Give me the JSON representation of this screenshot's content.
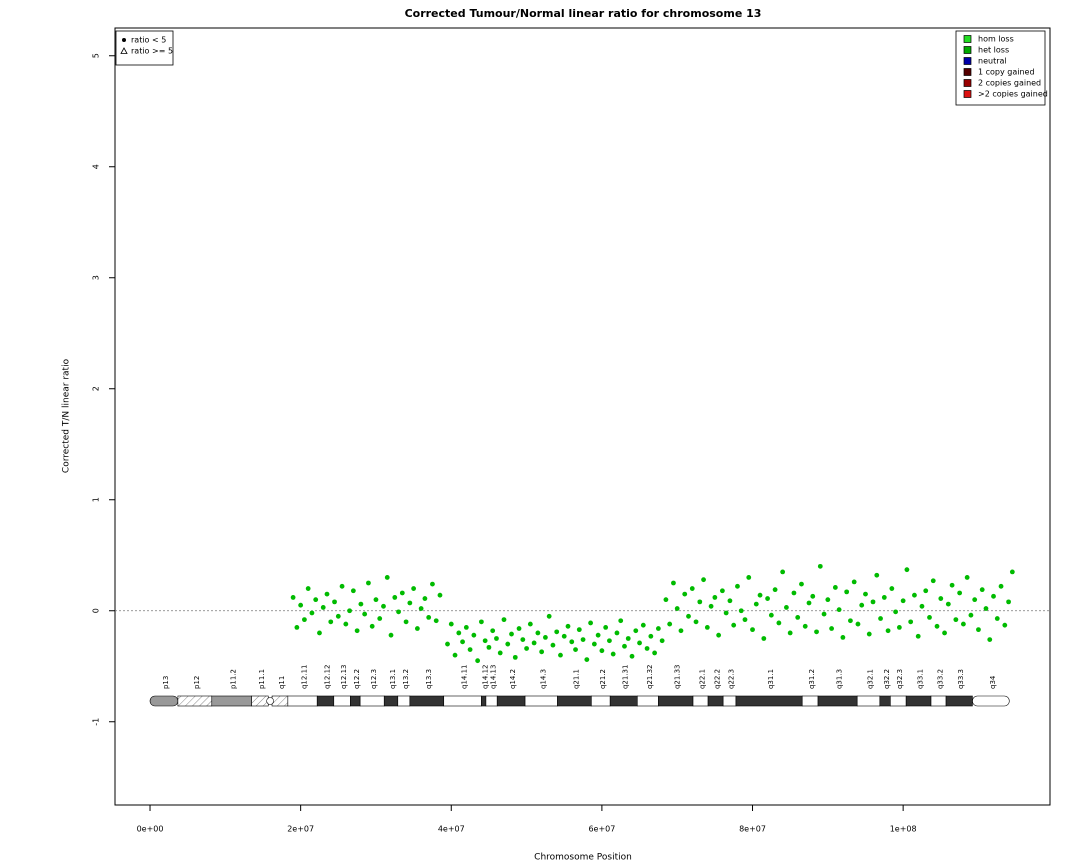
{
  "chart_data": {
    "type": "scatter",
    "title": "Corrected Tumour/Normal linear ratio for chromosome  13",
    "x_label": "Chromosome Position",
    "y_label": "Corrected T/N linear ratio",
    "xlim": [
      -4650000,
      119500000
    ],
    "ylim": [
      -1.75,
      5.25
    ],
    "xticks": [
      {
        "value": 0,
        "label": "0e+00"
      },
      {
        "value": 20000000,
        "label": "2e+07"
      },
      {
        "value": 40000000,
        "label": "4e+07"
      },
      {
        "value": 60000000,
        "label": "6e+07"
      },
      {
        "value": 80000000,
        "label": "8e+07"
      },
      {
        "value": 100000000,
        "label": "1e+08"
      }
    ],
    "yticks": [
      -1,
      0,
      1,
      2,
      3,
      4,
      5
    ],
    "reference_line": 0,
    "color": "#00bb00",
    "x": [
      19000000.0,
      19500000.0,
      20000000.0,
      20500000.0,
      21000000.0,
      21500000.0,
      22000000.0,
      22500000.0,
      23000000.0,
      23500000.0,
      24000000.0,
      24500000.0,
      25000000.0,
      25500000.0,
      26000000.0,
      26500000.0,
      27000000.0,
      27500000.0,
      28000000.0,
      28500000.0,
      29000000.0,
      29500000.0,
      30000000.0,
      30500000.0,
      31000000.0,
      31500000.0,
      32000000.0,
      32500000.0,
      33000000.0,
      33500000.0,
      34000000.0,
      34500000.0,
      35000000.0,
      35500000.0,
      36000000.0,
      36500000.0,
      37000000.0,
      37500000.0,
      38000000.0,
      38500000.0,
      39500000.0,
      40000000.0,
      40500000.0,
      41000000.0,
      41500000.0,
      42000000.0,
      42500000.0,
      43000000.0,
      43500000.0,
      44000000.0,
      44500000.0,
      45000000.0,
      45500000.0,
      46000000.0,
      46500000.0,
      47000000.0,
      47500000.0,
      48000000.0,
      48500000.0,
      49000000.0,
      49500000.0,
      50000000.0,
      50500000.0,
      51000000.0,
      51500000.0,
      52000000.0,
      52500000.0,
      53000000.0,
      53500000.0,
      54000000.0,
      54500000.0,
      55000000.0,
      55500000.0,
      56000000.0,
      56500000.0,
      57000000.0,
      57500000.0,
      58000000.0,
      58500000.0,
      59000000.0,
      59500000.0,
      60000000.0,
      60500000.0,
      61000000.0,
      61500000.0,
      62000000.0,
      62500000.0,
      63000000.0,
      63500000.0,
      64000000.0,
      64500000.0,
      65000000.0,
      65500000.0,
      66000000.0,
      66500000.0,
      67000000.0,
      67500000.0,
      68000000.0,
      68500000.0,
      69000000.0,
      69500000.0,
      70000000.0,
      70500000.0,
      71000000.0,
      71500000.0,
      72000000.0,
      72500000.0,
      73000000.0,
      73500000.0,
      74000000.0,
      74500000.0,
      75000000.0,
      75500000.0,
      76000000.0,
      76500000.0,
      77000000.0,
      77500000.0,
      78000000.0,
      78500000.0,
      79000000.0,
      79500000.0,
      80000000.0,
      80500000.0,
      81000000.0,
      81500000.0,
      82000000.0,
      82500000.0,
      83000000.0,
      83500000.0,
      84000000.0,
      84500000.0,
      85000000.0,
      85500000.0,
      86000000.0,
      86500000.0,
      87000000.0,
      87500000.0,
      88000000.0,
      88500000.0,
      89000000.0,
      89500000.0,
      90000000.0,
      90500000.0,
      91000000.0,
      91500000.0,
      92000000.0,
      92500000.0,
      93000000.0,
      93500000.0,
      94000000.0,
      94500000.0,
      95000000.0,
      95500000.0,
      96000000.0,
      96500000.0,
      97000000.0,
      97500000.0,
      98000000.0,
      98500000.0,
      99000000.0,
      99500000.0,
      100000000.0,
      100500000.0,
      101000000.0,
      101500000.0,
      102000000.0,
      102500000.0,
      103000000.0,
      103500000.0,
      104000000.0,
      104500000.0,
      105000000.0,
      105500000.0,
      106000000.0,
      106500000.0,
      107000000.0,
      107500000.0,
      108000000.0,
      108500000.0,
      109000000.0,
      109500000.0,
      110000000.0,
      110500000.0,
      111000000.0,
      111500000.0,
      112000000.0,
      112500000.0,
      113000000.0,
      113500000.0,
      114000000.0,
      114500000.0
    ],
    "values": [
      0.12,
      -0.15,
      0.05,
      -0.08,
      0.2,
      -0.02,
      0.1,
      -0.2,
      0.03,
      0.15,
      -0.1,
      0.08,
      -0.05,
      0.22,
      -0.12,
      0.0,
      0.18,
      -0.18,
      0.06,
      -0.03,
      0.25,
      -0.14,
      0.1,
      -0.07,
      0.04,
      0.3,
      -0.22,
      0.12,
      -0.01,
      0.16,
      -0.1,
      0.07,
      0.2,
      -0.16,
      0.02,
      0.11,
      -0.06,
      0.24,
      -0.09,
      0.14,
      -0.3,
      -0.12,
      -0.4,
      -0.2,
      -0.28,
      -0.15,
      -0.35,
      -0.22,
      -0.45,
      -0.1,
      -0.27,
      -0.33,
      -0.18,
      -0.25,
      -0.38,
      -0.08,
      -0.3,
      -0.21,
      -0.42,
      -0.16,
      -0.26,
      -0.34,
      -0.12,
      -0.29,
      -0.2,
      -0.37,
      -0.24,
      -0.05,
      -0.31,
      -0.19,
      -0.4,
      -0.23,
      -0.14,
      -0.28,
      -0.35,
      -0.17,
      -0.26,
      -0.44,
      -0.11,
      -0.3,
      -0.22,
      -0.36,
      -0.15,
      -0.27,
      -0.39,
      -0.2,
      -0.09,
      -0.32,
      -0.25,
      -0.41,
      -0.18,
      -0.29,
      -0.13,
      -0.34,
      -0.23,
      -0.38,
      -0.16,
      -0.27,
      0.1,
      -0.12,
      0.25,
      0.02,
      -0.18,
      0.15,
      -0.05,
      0.2,
      -0.1,
      0.08,
      0.28,
      -0.15,
      0.04,
      0.12,
      -0.22,
      0.18,
      -0.02,
      0.09,
      -0.13,
      0.22,
      0.0,
      -0.08,
      0.3,
      -0.17,
      0.06,
      0.14,
      -0.25,
      0.11,
      -0.04,
      0.19,
      -0.11,
      0.35,
      0.03,
      -0.2,
      0.16,
      -0.06,
      0.24,
      -0.14,
      0.07,
      0.13,
      -0.19,
      0.4,
      -0.03,
      0.1,
      -0.16,
      0.21,
      0.01,
      -0.24,
      0.17,
      -0.09,
      0.26,
      -0.12,
      0.05,
      0.15,
      -0.21,
      0.08,
      0.32,
      -0.07,
      0.12,
      -0.18,
      0.2,
      -0.01,
      -0.15,
      0.09,
      0.37,
      -0.1,
      0.14,
      -0.23,
      0.04,
      0.18,
      -0.06,
      0.27,
      -0.14,
      0.11,
      -0.2,
      0.06,
      0.23,
      -0.08,
      0.16,
      -0.12,
      0.3,
      -0.04,
      0.1,
      -0.17,
      0.19,
      0.02,
      -0.26,
      0.13,
      -0.07,
      0.22,
      -0.13,
      0.08,
      0.35
    ],
    "marker_legend": [
      {
        "label": "ratio < 5",
        "marker": "circle"
      },
      {
        "label": "ratio >= 5",
        "marker": "triangle"
      }
    ],
    "status_legend": [
      {
        "label": "hom loss",
        "color": "#22dd22"
      },
      {
        "label": "het loss",
        "color": "#00aa00"
      },
      {
        "label": "neutral",
        "color": "#0000aa"
      },
      {
        "label": "1 copy gained",
        "color": "#550000"
      },
      {
        "label": "2 copies gained",
        "color": "#990000"
      },
      {
        "label": ">2 copies gained",
        "color": "#dd1111"
      }
    ],
    "stain_colors": {
      "gneg": "#ffffff",
      "gpos50": "#999999",
      "gpos100": "#333333",
      "stalk": "url(#hatch)",
      "acen": "url(#hatch)"
    },
    "ideogram": {
      "bands": [
        {
          "name": "p13",
          "start": 0,
          "end": 3700000,
          "stain": "gpos50"
        },
        {
          "name": "p12",
          "start": 3700000,
          "end": 8200000,
          "stain": "stalk"
        },
        {
          "name": "p11.2",
          "start": 8200000,
          "end": 13500000,
          "stain": "gpos50"
        },
        {
          "name": "p11.1",
          "start": 13500000,
          "end": 15700000,
          "stain": "acen"
        },
        {
          "name": "q11",
          "start": 16200000,
          "end": 18300000,
          "stain": "acen"
        },
        {
          "name": "q12.11",
          "start": 18300000,
          "end": 22200000,
          "stain": "gneg"
        },
        {
          "name": "q12.12",
          "start": 22200000,
          "end": 24400000,
          "stain": "gpos100"
        },
        {
          "name": "q12.13",
          "start": 24400000,
          "end": 26600000,
          "stain": "gneg"
        },
        {
          "name": "q12.2",
          "start": 26600000,
          "end": 27900000,
          "stain": "gpos100"
        },
        {
          "name": "q12.3",
          "start": 27900000,
          "end": 31100000,
          "stain": "gneg"
        },
        {
          "name": "q13.1",
          "start": 31100000,
          "end": 32900000,
          "stain": "gpos100"
        },
        {
          "name": "q13.2",
          "start": 32900000,
          "end": 34500000,
          "stain": "gneg"
        },
        {
          "name": "q13.3",
          "start": 34500000,
          "end": 39000000,
          "stain": "gpos100"
        },
        {
          "name": "q14.11",
          "start": 39000000,
          "end": 44000000,
          "stain": "gneg"
        },
        {
          "name": "q14.12",
          "start": 44000000,
          "end": 44600000,
          "stain": "gpos100"
        },
        {
          "name": "q14.13",
          "start": 44600000,
          "end": 46100000,
          "stain": "gneg"
        },
        {
          "name": "q14.2",
          "start": 46100000,
          "end": 49800000,
          "stain": "gpos100"
        },
        {
          "name": "q14.3",
          "start": 49800000,
          "end": 54100000,
          "stain": "gneg"
        },
        {
          "name": "q21.1",
          "start": 54100000,
          "end": 58600000,
          "stain": "gpos100"
        },
        {
          "name": "q21.2",
          "start": 58600000,
          "end": 61100000,
          "stain": "gneg"
        },
        {
          "name": "q21.31",
          "start": 61100000,
          "end": 64700000,
          "stain": "gpos100"
        },
        {
          "name": "q21.32",
          "start": 64700000,
          "end": 67500000,
          "stain": "gneg"
        },
        {
          "name": "q21.33",
          "start": 67500000,
          "end": 72100000,
          "stain": "gpos100"
        },
        {
          "name": "q22.1",
          "start": 72100000,
          "end": 74100000,
          "stain": "gneg"
        },
        {
          "name": "q22.2",
          "start": 74100000,
          "end": 76100000,
          "stain": "gpos100"
        },
        {
          "name": "q22.3",
          "start": 76100000,
          "end": 77800000,
          "stain": "gneg"
        },
        {
          "name": "q31.1",
          "start": 77800000,
          "end": 86600000,
          "stain": "gpos100"
        },
        {
          "name": "q31.2",
          "start": 86600000,
          "end": 88700000,
          "stain": "gneg"
        },
        {
          "name": "q31.3",
          "start": 88700000,
          "end": 93900000,
          "stain": "gpos100"
        },
        {
          "name": "q32.1",
          "start": 93900000,
          "end": 96900000,
          "stain": "gneg"
        },
        {
          "name": "q32.2",
          "start": 96900000,
          "end": 98300000,
          "stain": "gpos100"
        },
        {
          "name": "q32.3",
          "start": 98300000,
          "end": 100400000,
          "stain": "gneg"
        },
        {
          "name": "q33.1",
          "start": 100400000,
          "end": 103700000,
          "stain": "gpos100"
        },
        {
          "name": "q33.2",
          "start": 103700000,
          "end": 105700000,
          "stain": "gneg"
        },
        {
          "name": "q33.3",
          "start": 105700000,
          "end": 109200000,
          "stain": "gpos100"
        },
        {
          "name": "q34",
          "start": 109200000,
          "end": 114100000,
          "stain": "gneg"
        }
      ]
    }
  }
}
